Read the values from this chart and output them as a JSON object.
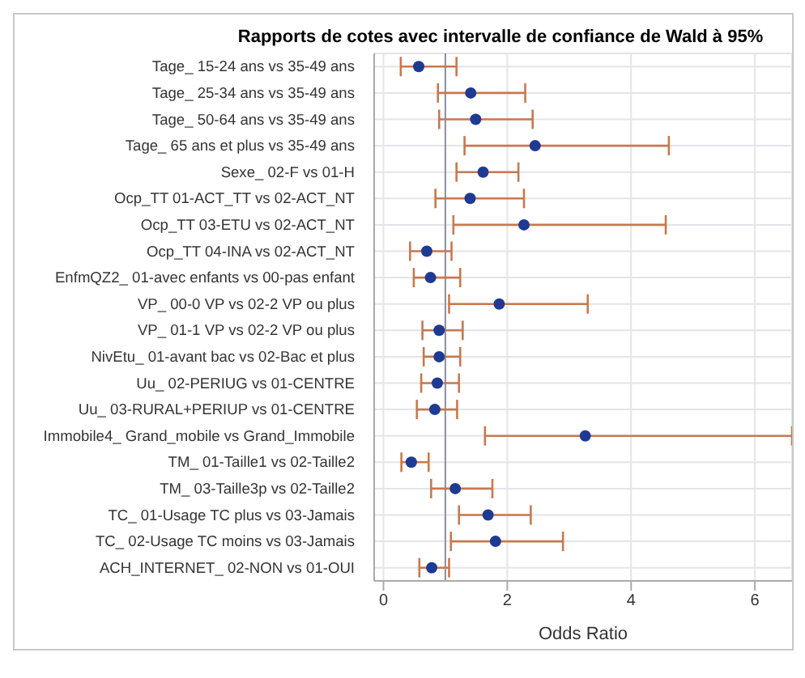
{
  "chart_data": {
    "type": "scatter",
    "orientation": "horizontal",
    "title": "Rapports de cotes avec intervalle de confiance de Wald à 95%",
    "xlabel": "Odds Ratio",
    "categories": [
      "Tage_ 15-24 ans vs 35-49 ans",
      "Tage_ 25-34 ans vs 35-49 ans",
      "Tage_ 50-64 ans vs 35-49 ans",
      "Tage_ 65 ans et plus vs 35-49 ans",
      "Sexe_ 02-F vs 01-H",
      "Ocp_TT 01-ACT_TT vs 02-ACT_NT",
      "Ocp_TT 03-ETU vs 02-ACT_NT",
      "Ocp_TT 04-INA vs 02-ACT_NT",
      "EnfmQZ2_ 01-avec enfants vs 00-pas enfant",
      "VP_ 00-0 VP vs 02-2 VP ou plus",
      "VP_ 01-1 VP vs 02-2 VP ou plus",
      "NivEtu_ 01-avant bac vs 02-Bac et plus",
      "Uu_ 02-PERIUG vs 01-CENTRE",
      "Uu_ 03-RURAL+PERIUP vs 01-CENTRE",
      "Immobile4_ Grand_mobile vs Grand_Immobile",
      "TM_ 01-Taille1 vs 02-Taille2",
      "TM_ 03-Taille3p vs 02-Taille2",
      "TC_ 01-Usage TC plus vs 03-Jamais",
      "TC_ 02-Usage TC moins vs 03-Jamais",
      "ACH_INTERNET_ 02-NON vs 01-OUI"
    ],
    "series": [
      {
        "color": "#1f3a93",
        "values": [
          0.57,
          1.41,
          1.49,
          2.45,
          1.61,
          1.4,
          2.27,
          0.7,
          0.76,
          1.87,
          0.9,
          0.9,
          0.87,
          0.83,
          3.26,
          0.45,
          1.16,
          1.69,
          1.81,
          0.78
        ],
        "errors": [
          [
            0.28,
            1.18
          ],
          [
            0.88,
            2.29
          ],
          [
            0.9,
            2.41
          ],
          [
            1.31,
            4.61
          ],
          [
            1.18,
            2.18
          ],
          [
            0.84,
            2.27
          ],
          [
            1.13,
            4.56
          ],
          [
            0.43,
            1.1
          ],
          [
            0.49,
            1.24
          ],
          [
            1.06,
            3.3
          ],
          [
            0.63,
            1.28
          ],
          [
            0.65,
            1.24
          ],
          [
            0.61,
            1.22
          ],
          [
            0.54,
            1.19
          ],
          [
            1.64,
            6.6
          ],
          [
            0.29,
            0.73
          ],
          [
            0.77,
            1.76
          ],
          [
            1.22,
            2.38
          ],
          [
            1.09,
            2.9
          ],
          [
            0.58,
            1.06
          ]
        ]
      }
    ],
    "xlim": [
      -0.15,
      6.6
    ],
    "xticks": [
      0,
      2,
      4,
      6
    ],
    "ref_lines": [
      {
        "axis": "x",
        "value": 1,
        "color": "#8a8fa0"
      }
    ],
    "grid": true,
    "marker": "circle"
  }
}
